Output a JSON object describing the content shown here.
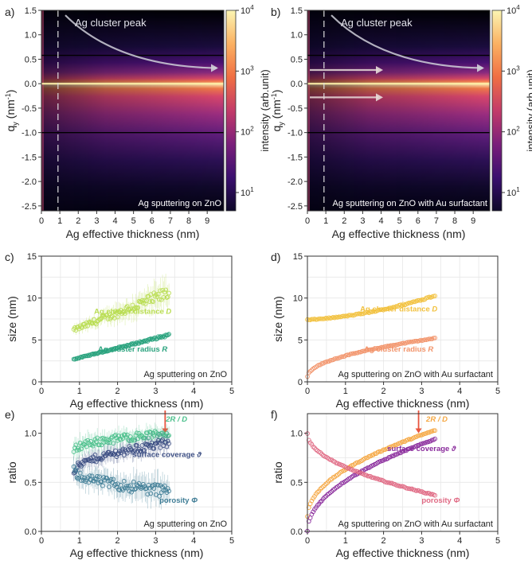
{
  "panel_labels": [
    "a)",
    "b)",
    "c)",
    "d)",
    "e)",
    "f)"
  ],
  "chart_data": [
    {
      "id": "a",
      "type": "heatmap",
      "xlabel": "Ag effective thickness (nm)",
      "ylabel": "q",
      "ylabel_sub": "y",
      "ylabel_unit": "(nm",
      "ylabel_unit_sup": "-1",
      "ylabel_unit_end": ")",
      "xlim": [
        0,
        9.9
      ],
      "ylim": [
        -2.6,
        1.5
      ],
      "xticks": [
        "0",
        "1",
        "2",
        "3",
        "4",
        "5",
        "6",
        "7",
        "8",
        "9"
      ],
      "yticks": [
        "1.5",
        "1.0",
        "0.5",
        "0.0",
        "-0.5",
        "-1.0",
        "-1.5",
        "-2.0",
        "-2.5"
      ],
      "ytick_values": [
        1.5,
        1.0,
        0.5,
        0.0,
        -0.5,
        -1.0,
        -1.5,
        -2.0,
        -2.5
      ],
      "annotation": "Ag cluster peak",
      "caption": "Ag sputtering on ZnO",
      "dashed_x": 0.9,
      "hlines_black": [
        0.58,
        -1.0
      ],
      "hline_yellow": 0.0,
      "peak_arrow": true,
      "extra_arrows": false,
      "colorbar": {
        "label": "intensity (arb.unit)",
        "scale": "log",
        "range": [
          5,
          10000
        ],
        "ticks": [
          {
            "base": "10",
            "exp": "1",
            "value": 10
          },
          {
            "base": "10",
            "exp": "2",
            "value": 100
          },
          {
            "base": "10",
            "exp": "3",
            "value": 1000
          },
          {
            "base": "10",
            "exp": "4",
            "value": 10000
          }
        ],
        "colors": [
          "#0d0829",
          "#3b0f6f",
          "#7b1f7b",
          "#c33b69",
          "#f06f43",
          "#fbb162",
          "#fbf5b3"
        ]
      }
    },
    {
      "id": "b",
      "type": "heatmap",
      "xlabel": "Ag effective thickness (nm)",
      "ylabel": "q",
      "ylabel_sub": "y",
      "ylabel_unit": "(nm",
      "ylabel_unit_sup": "-1",
      "ylabel_unit_end": ")",
      "xlim": [
        0,
        9.9
      ],
      "ylim": [
        -2.6,
        1.5
      ],
      "xticks": [
        "0",
        "1",
        "2",
        "3",
        "4",
        "5",
        "6",
        "7",
        "8",
        "9"
      ],
      "yticks": [
        "1.5",
        "1.0",
        "0.5",
        "0.0",
        "-0.5",
        "-1.0",
        "-1.5",
        "-2.0",
        "-2.5"
      ],
      "ytick_values": [
        1.5,
        1.0,
        0.5,
        0.0,
        -0.5,
        -1.0,
        -1.5,
        -2.0,
        -2.5
      ],
      "annotation": "Ag cluster peak",
      "caption": "Ag sputtering on ZnO with Au surfactant",
      "dashed_x": 0.9,
      "hlines_black": [
        0.58,
        -1.0
      ],
      "hline_yellow": 0.0,
      "peak_arrow": true,
      "extra_arrows": true,
      "colorbar": {
        "label": "intensity (arb.unit)",
        "scale": "log",
        "range": [
          5,
          10000
        ],
        "ticks": [
          {
            "base": "10",
            "exp": "1",
            "value": 10
          },
          {
            "base": "10",
            "exp": "2",
            "value": 100
          },
          {
            "base": "10",
            "exp": "3",
            "value": 1000
          },
          {
            "base": "10",
            "exp": "4",
            "value": 10000
          }
        ],
        "colors": [
          "#0d0829",
          "#3b0f6f",
          "#7b1f7b",
          "#c33b69",
          "#f06f43",
          "#fbb162",
          "#fbf5b3"
        ]
      }
    },
    {
      "id": "c",
      "type": "scatter",
      "xlabel": "Ag effective thickness (nm)",
      "ylabel": "size (nm)",
      "xlim": [
        0,
        5
      ],
      "ylim": [
        0,
        15
      ],
      "xticks": [
        0,
        1,
        2,
        3,
        4,
        5
      ],
      "yticks": [
        0,
        5,
        10,
        15
      ],
      "caption": "Ag sputtering on ZnO",
      "series": [
        {
          "name": "Ag cluster distance",
          "italic": "D",
          "color": "#b9dd52",
          "x0": 0.85,
          "x1": 3.35,
          "y0": 6.2,
          "y1": 10.6,
          "shape": "linear",
          "err0": 0.5,
          "err1": 1.8,
          "label_x": 2.4,
          "label_y": 8.1
        },
        {
          "name": "Ag cluster radius",
          "italic": "R",
          "color": "#2aa37e",
          "x0": 0.85,
          "x1": 3.35,
          "y0": 2.7,
          "y1": 5.6,
          "shape": "linear",
          "err0": 0.1,
          "err1": 0.3,
          "label_x": 2.4,
          "label_y": 3.6
        }
      ]
    },
    {
      "id": "d",
      "type": "scatter",
      "xlabel": "Ag effective thickness (nm)",
      "ylabel": "size (nm)",
      "xlim": [
        0,
        5
      ],
      "ylim": [
        0,
        15
      ],
      "xticks": [
        0,
        1,
        2,
        3,
        4,
        5
      ],
      "yticks": [
        0,
        5,
        10,
        15
      ],
      "caption": "Ag sputtering on ZnO with Au surfactant",
      "series": [
        {
          "name": "Ag cluster distance",
          "italic": "D",
          "color": "#f2c13e",
          "x0": 0.0,
          "x1": 3.35,
          "y0": 7.4,
          "y1": 10.3,
          "shape": "quad",
          "err0": 0.1,
          "err1": 0.2,
          "label_x": 2.4,
          "label_y": 8.4
        },
        {
          "name": "Ag cluster radius",
          "italic": "R",
          "color": "#f2946b",
          "x0": 0.0,
          "x1": 3.35,
          "y0": 0.6,
          "y1": 5.2,
          "shape": "sqrt",
          "err0": 0.1,
          "err1": 0.1,
          "label_x": 2.4,
          "label_y": 3.6
        }
      ]
    },
    {
      "id": "e",
      "type": "scatter",
      "xlabel": "Ag effective thickness (nm)",
      "ylabel": "ratio",
      "xlim": [
        0,
        5
      ],
      "ylim": [
        0,
        1.2
      ],
      "xticks": [
        0,
        1,
        2,
        3,
        4,
        5
      ],
      "yticks": [
        0.0,
        0.5,
        1.0
      ],
      "caption": "Ag sputtering on ZnO",
      "arrow_x": 3.25,
      "series": [
        {
          "name": "2R / D",
          "italic": "",
          "color": "#4cc08c",
          "x0": 0.85,
          "x1": 3.35,
          "y0": 0.83,
          "y1": 1.0,
          "shape": "sqrt",
          "err0": 0.1,
          "err1": 0.08,
          "label_x": 3.55,
          "label_y": 1.12
        },
        {
          "name": "surface coverage",
          "italic": "ϑ",
          "color": "#3b4d82",
          "x0": 0.85,
          "x1": 3.35,
          "y0": 0.6,
          "y1": 0.9,
          "shape": "sqrt",
          "err0": 0.08,
          "err1": 0.1,
          "label_x": 3.3,
          "label_y": 0.76
        },
        {
          "name": "porosity",
          "italic": "Φ",
          "color": "#3f7d96",
          "x0": 0.85,
          "x1": 3.35,
          "y0": 0.62,
          "y1": 0.41,
          "shape": "sqrt",
          "err0": 0.1,
          "err1": 0.15,
          "label_x": 3.6,
          "label_y": 0.29
        }
      ]
    },
    {
      "id": "f",
      "type": "scatter",
      "xlabel": "Ag effective thickness (nm)",
      "ylabel": "ratio",
      "xlim": [
        0,
        5
      ],
      "ylim": [
        0,
        1.2
      ],
      "xticks": [
        0,
        1,
        2,
        3,
        4,
        5
      ],
      "yticks": [
        0.0,
        0.5,
        1.0
      ],
      "caption": "Ag sputtering on ZnO with Au surfactant",
      "arrow_x": 2.92,
      "series": [
        {
          "name": "2R / D",
          "italic": "",
          "color": "#f5a742",
          "x0": 0.0,
          "x1": 3.35,
          "y0": 0.15,
          "y1": 1.03,
          "shape": "sqrt",
          "err0": 0.01,
          "err1": 0.01,
          "label_x": 3.4,
          "label_y": 1.12
        },
        {
          "name": "surface coverage",
          "italic": "ϑ",
          "color": "#8a2b9c",
          "x0": 0.0,
          "x1": 3.35,
          "y0": 0.0,
          "y1": 0.94,
          "shape": "sqrt",
          "err0": 0.01,
          "err1": 0.01,
          "label_x": 3.0,
          "label_y": 0.82
        },
        {
          "name": "porosity",
          "italic": "Φ",
          "color": "#e06a84",
          "x0": 0.0,
          "x1": 3.35,
          "y0": 1.0,
          "y1": 0.37,
          "shape": "sqrt",
          "err0": 0.01,
          "err1": 0.01,
          "label_x": 3.5,
          "label_y": 0.29
        }
      ]
    }
  ]
}
